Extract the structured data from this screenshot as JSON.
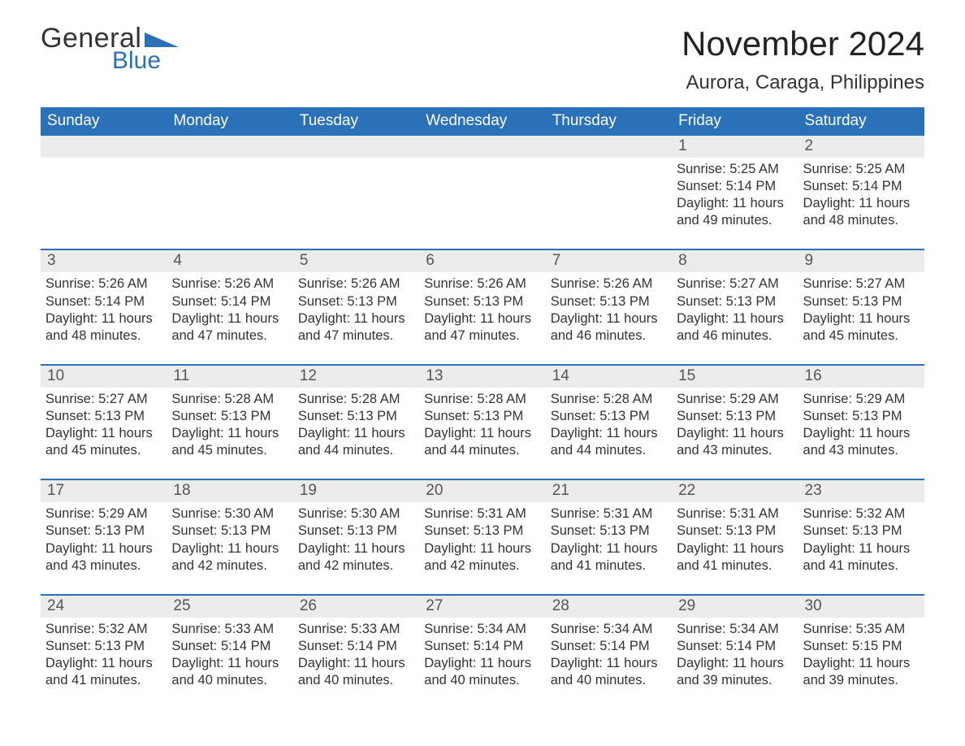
{
  "brand": {
    "word1": "General",
    "word2": "Blue",
    "accent_color": "#2a71b8"
  },
  "title": "November 2024",
  "location": "Aurora, Caraga, Philippines",
  "colors": {
    "header_bg": "#2a71b8",
    "header_text": "#ffffff",
    "daynum_bg": "#ececec",
    "daynum_border": "#2a71b8",
    "text": "#333333",
    "background": "#ffffff"
  },
  "day_headers": [
    "Sunday",
    "Monday",
    "Tuesday",
    "Wednesday",
    "Thursday",
    "Friday",
    "Saturday"
  ],
  "weeks": [
    [
      {
        "day": "",
        "sunrise": "",
        "sunset": "",
        "daylight": ""
      },
      {
        "day": "",
        "sunrise": "",
        "sunset": "",
        "daylight": ""
      },
      {
        "day": "",
        "sunrise": "",
        "sunset": "",
        "daylight": ""
      },
      {
        "day": "",
        "sunrise": "",
        "sunset": "",
        "daylight": ""
      },
      {
        "day": "",
        "sunrise": "",
        "sunset": "",
        "daylight": ""
      },
      {
        "day": "1",
        "sunrise": "Sunrise: 5:25 AM",
        "sunset": "Sunset: 5:14 PM",
        "daylight": "Daylight: 11 hours and 49 minutes."
      },
      {
        "day": "2",
        "sunrise": "Sunrise: 5:25 AM",
        "sunset": "Sunset: 5:14 PM",
        "daylight": "Daylight: 11 hours and 48 minutes."
      }
    ],
    [
      {
        "day": "3",
        "sunrise": "Sunrise: 5:26 AM",
        "sunset": "Sunset: 5:14 PM",
        "daylight": "Daylight: 11 hours and 48 minutes."
      },
      {
        "day": "4",
        "sunrise": "Sunrise: 5:26 AM",
        "sunset": "Sunset: 5:14 PM",
        "daylight": "Daylight: 11 hours and 47 minutes."
      },
      {
        "day": "5",
        "sunrise": "Sunrise: 5:26 AM",
        "sunset": "Sunset: 5:13 PM",
        "daylight": "Daylight: 11 hours and 47 minutes."
      },
      {
        "day": "6",
        "sunrise": "Sunrise: 5:26 AM",
        "sunset": "Sunset: 5:13 PM",
        "daylight": "Daylight: 11 hours and 47 minutes."
      },
      {
        "day": "7",
        "sunrise": "Sunrise: 5:26 AM",
        "sunset": "Sunset: 5:13 PM",
        "daylight": "Daylight: 11 hours and 46 minutes."
      },
      {
        "day": "8",
        "sunrise": "Sunrise: 5:27 AM",
        "sunset": "Sunset: 5:13 PM",
        "daylight": "Daylight: 11 hours and 46 minutes."
      },
      {
        "day": "9",
        "sunrise": "Sunrise: 5:27 AM",
        "sunset": "Sunset: 5:13 PM",
        "daylight": "Daylight: 11 hours and 45 minutes."
      }
    ],
    [
      {
        "day": "10",
        "sunrise": "Sunrise: 5:27 AM",
        "sunset": "Sunset: 5:13 PM",
        "daylight": "Daylight: 11 hours and 45 minutes."
      },
      {
        "day": "11",
        "sunrise": "Sunrise: 5:28 AM",
        "sunset": "Sunset: 5:13 PM",
        "daylight": "Daylight: 11 hours and 45 minutes."
      },
      {
        "day": "12",
        "sunrise": "Sunrise: 5:28 AM",
        "sunset": "Sunset: 5:13 PM",
        "daylight": "Daylight: 11 hours and 44 minutes."
      },
      {
        "day": "13",
        "sunrise": "Sunrise: 5:28 AM",
        "sunset": "Sunset: 5:13 PM",
        "daylight": "Daylight: 11 hours and 44 minutes."
      },
      {
        "day": "14",
        "sunrise": "Sunrise: 5:28 AM",
        "sunset": "Sunset: 5:13 PM",
        "daylight": "Daylight: 11 hours and 44 minutes."
      },
      {
        "day": "15",
        "sunrise": "Sunrise: 5:29 AM",
        "sunset": "Sunset: 5:13 PM",
        "daylight": "Daylight: 11 hours and 43 minutes."
      },
      {
        "day": "16",
        "sunrise": "Sunrise: 5:29 AM",
        "sunset": "Sunset: 5:13 PM",
        "daylight": "Daylight: 11 hours and 43 minutes."
      }
    ],
    [
      {
        "day": "17",
        "sunrise": "Sunrise: 5:29 AM",
        "sunset": "Sunset: 5:13 PM",
        "daylight": "Daylight: 11 hours and 43 minutes."
      },
      {
        "day": "18",
        "sunrise": "Sunrise: 5:30 AM",
        "sunset": "Sunset: 5:13 PM",
        "daylight": "Daylight: 11 hours and 42 minutes."
      },
      {
        "day": "19",
        "sunrise": "Sunrise: 5:30 AM",
        "sunset": "Sunset: 5:13 PM",
        "daylight": "Daylight: 11 hours and 42 minutes."
      },
      {
        "day": "20",
        "sunrise": "Sunrise: 5:31 AM",
        "sunset": "Sunset: 5:13 PM",
        "daylight": "Daylight: 11 hours and 42 minutes."
      },
      {
        "day": "21",
        "sunrise": "Sunrise: 5:31 AM",
        "sunset": "Sunset: 5:13 PM",
        "daylight": "Daylight: 11 hours and 41 minutes."
      },
      {
        "day": "22",
        "sunrise": "Sunrise: 5:31 AM",
        "sunset": "Sunset: 5:13 PM",
        "daylight": "Daylight: 11 hours and 41 minutes."
      },
      {
        "day": "23",
        "sunrise": "Sunrise: 5:32 AM",
        "sunset": "Sunset: 5:13 PM",
        "daylight": "Daylight: 11 hours and 41 minutes."
      }
    ],
    [
      {
        "day": "24",
        "sunrise": "Sunrise: 5:32 AM",
        "sunset": "Sunset: 5:13 PM",
        "daylight": "Daylight: 11 hours and 41 minutes."
      },
      {
        "day": "25",
        "sunrise": "Sunrise: 5:33 AM",
        "sunset": "Sunset: 5:14 PM",
        "daylight": "Daylight: 11 hours and 40 minutes."
      },
      {
        "day": "26",
        "sunrise": "Sunrise: 5:33 AM",
        "sunset": "Sunset: 5:14 PM",
        "daylight": "Daylight: 11 hours and 40 minutes."
      },
      {
        "day": "27",
        "sunrise": "Sunrise: 5:34 AM",
        "sunset": "Sunset: 5:14 PM",
        "daylight": "Daylight: 11 hours and 40 minutes."
      },
      {
        "day": "28",
        "sunrise": "Sunrise: 5:34 AM",
        "sunset": "Sunset: 5:14 PM",
        "daylight": "Daylight: 11 hours and 40 minutes."
      },
      {
        "day": "29",
        "sunrise": "Sunrise: 5:34 AM",
        "sunset": "Sunset: 5:14 PM",
        "daylight": "Daylight: 11 hours and 39 minutes."
      },
      {
        "day": "30",
        "sunrise": "Sunrise: 5:35 AM",
        "sunset": "Sunset: 5:15 PM",
        "daylight": "Daylight: 11 hours and 39 minutes."
      }
    ]
  ]
}
